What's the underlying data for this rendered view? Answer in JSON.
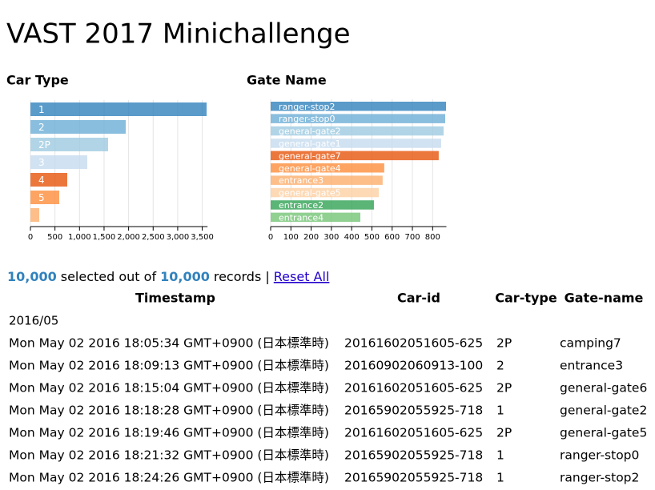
{
  "header": {
    "title": "VAST 2017 Minichallenge"
  },
  "chart_data": [
    {
      "type": "row",
      "title": "Car Type",
      "categories": [
        "1",
        "2",
        "2P",
        "3",
        "4",
        "5",
        null
      ],
      "values": [
        3589,
        1941,
        1582,
        1158,
        750,
        587,
        180
      ],
      "colors": [
        "#3182bd",
        "#6baed6",
        "#9ecae1",
        "#c6dbef",
        "#e6550d",
        "#fd8d3c",
        "#fdae6b"
      ],
      "xlim": [
        0,
        3600
      ],
      "xticks": [
        0,
        500,
        {
          "value": 1000,
          "label": "1,000"
        },
        {
          "value": 1500,
          "label": "1,500"
        },
        {
          "value": 2000,
          "label": "2,000"
        },
        {
          "value": 2500,
          "label": "2,500"
        },
        {
          "value": 3000,
          "label": "3,000"
        },
        {
          "value": 3500,
          "label": "3,500"
        }
      ],
      "grid": true
    },
    {
      "type": "row",
      "title": "Gate Name",
      "categories": [
        "ranger-stop2",
        "ranger-stop0",
        "general-gate2",
        "general-gate1",
        "general-gate7",
        "general-gate4",
        "entrance3",
        "general-gate5",
        "entrance2",
        "entrance4"
      ],
      "values": [
        866,
        862,
        854,
        842,
        830,
        561,
        553,
        534,
        510,
        443
      ],
      "colors": [
        "#3182bd",
        "#6baed6",
        "#9ecae1",
        "#c6dbef",
        "#e6550d",
        "#fd8d3c",
        "#fdae6b",
        "#fdd0a2",
        "#31a354",
        "#74c476"
      ],
      "xlim": [
        0,
        866
      ],
      "xticks": [
        0,
        100,
        200,
        300,
        400,
        500,
        600,
        700,
        800
      ],
      "grid": true
    }
  ],
  "count": {
    "selected": "10,000",
    "middle": "selected out of",
    "total": "10,000",
    "suffix": "records |",
    "reset": "Reset All"
  },
  "table": {
    "columns": [
      "Timestamp",
      "Car-id",
      "Car-type",
      "Gate-name"
    ],
    "group": "2016/05",
    "rows": [
      [
        "Mon May 02 2016 18:05:34 GMT+0900 (日本標準時)",
        "20161602051605-625",
        "2P",
        "camping7"
      ],
      [
        "Mon May 02 2016 18:09:13 GMT+0900 (日本標準時)",
        "20160902060913-100",
        "2",
        "entrance3"
      ],
      [
        "Mon May 02 2016 18:15:04 GMT+0900 (日本標準時)",
        "20161602051605-625",
        "2P",
        "general-gate6"
      ],
      [
        "Mon May 02 2016 18:18:28 GMT+0900 (日本標準時)",
        "20165902055925-718",
        "1",
        "general-gate2"
      ],
      [
        "Mon May 02 2016 18:19:46 GMT+0900 (日本標準時)",
        "20161602051605-625",
        "2P",
        "general-gate5"
      ],
      [
        "Mon May 02 2016 18:21:32 GMT+0900 (日本標準時)",
        "20165902055925-718",
        "1",
        "ranger-stop0"
      ],
      [
        "Mon May 02 2016 18:24:26 GMT+0900 (日本標準時)",
        "20165902055925-718",
        "1",
        "ranger-stop2"
      ]
    ]
  }
}
